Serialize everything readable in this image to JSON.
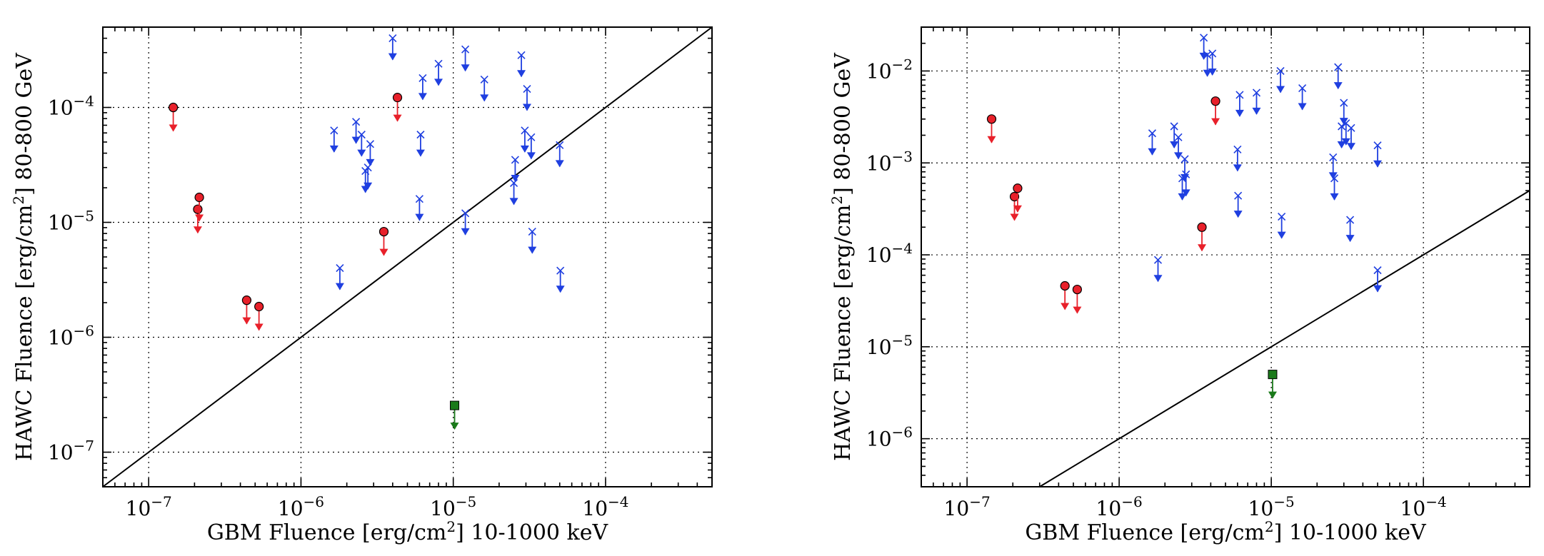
{
  "colors": {
    "grb_red": "#e8202a",
    "grb_blue": "#1f3fe0",
    "grb_green": "#1a7a1a",
    "line": "#000000"
  },
  "chart_data": [
    {
      "type": "scatter",
      "title": "",
      "xlabel": "GBM Fluence [erg/cm²] 10-1000 keV",
      "ylabel": "HAWC Fluence [erg/cm²] 80-800 GeV",
      "xscale": "log",
      "yscale": "log",
      "xlim": [
        5e-08,
        0.0005
      ],
      "ylim": [
        5e-08,
        0.0005
      ],
      "grid": true,
      "x_ticks": [
        {
          "value": 1e-07,
          "label": "10−7"
        },
        {
          "value": 1e-06,
          "label": "10−6"
        },
        {
          "value": 1e-05,
          "label": "10−5"
        },
        {
          "value": 0.0001,
          "label": "10−4"
        }
      ],
      "y_ticks": [
        {
          "value": 1e-07,
          "label": "10−7"
        },
        {
          "value": 1e-06,
          "label": "10−6"
        },
        {
          "value": 1e-05,
          "label": "10−5"
        },
        {
          "value": 0.0001,
          "label": "10−4"
        }
      ],
      "reference_line": {
        "label": "equal fluence",
        "points": [
          [
            5e-08,
            5e-08
          ],
          [
            0.0005,
            0.0005
          ]
        ]
      },
      "series": [
        {
          "name": "upper limits (red)",
          "color_key": "grb_red",
          "marker": "circle",
          "points": [
            [
              1.45e-07,
              0.0001
            ],
            [
              2.1e-07,
              1.3e-05
            ],
            [
              2.15e-07,
              1.65e-05
            ],
            [
              4.4e-07,
              2.1e-06
            ],
            [
              5.3e-07,
              1.85e-06
            ],
            [
              3.5e-06,
              8.3e-06
            ],
            [
              4.3e-06,
              0.000122
            ]
          ]
        },
        {
          "name": "upper limits (blue)",
          "color_key": "grb_blue",
          "marker": "x",
          "points": [
            [
              1.65e-06,
              6.3e-05
            ],
            [
              1.8e-06,
              4e-06
            ],
            [
              2.3e-06,
              7.5e-05
            ],
            [
              2.5e-06,
              5.8e-05
            ],
            [
              2.65e-06,
              2.8e-05
            ],
            [
              2.75e-06,
              3e-05
            ],
            [
              2.85e-06,
              4.8e-05
            ],
            [
              4e-06,
              0.0004
            ],
            [
              6e-06,
              1.6e-05
            ],
            [
              6.1e-06,
              5.8e-05
            ],
            [
              6.3e-06,
              0.00018
            ],
            [
              8e-06,
              0.00024
            ],
            [
              1.2e-05,
              0.00032
            ],
            [
              1.2e-05,
              1.2e-05
            ],
            [
              1.6e-05,
              0.000175
            ],
            [
              2.5e-05,
              2.2e-05
            ],
            [
              2.55e-05,
              3.5e-05
            ],
            [
              2.8e-05,
              0.000285
            ],
            [
              2.95e-05,
              6.3e-05
            ],
            [
              3.05e-05,
              0.000145
            ],
            [
              3.25e-05,
              5.5e-05
            ],
            [
              3.3e-05,
              8.3e-06
            ],
            [
              5e-05,
              4.7e-05
            ],
            [
              5.05e-05,
              3.8e-06
            ]
          ]
        },
        {
          "name": "upper limit (green)",
          "color_key": "grb_green",
          "marker": "square",
          "points": [
            [
              1.02e-05,
              2.55e-07
            ]
          ]
        }
      ]
    },
    {
      "type": "scatter",
      "title": "",
      "xlabel": "GBM Fluence [erg/cm²] 10-1000 keV",
      "ylabel": "HAWC Fluence [erg/cm²] 80-800 GeV",
      "xscale": "log",
      "yscale": "log",
      "xlim": [
        5e-08,
        0.0005
      ],
      "ylim": [
        3e-07,
        0.03
      ],
      "grid": true,
      "x_ticks": [
        {
          "value": 1e-07,
          "label": "10−7"
        },
        {
          "value": 1e-06,
          "label": "10−6"
        },
        {
          "value": 1e-05,
          "label": "10−5"
        },
        {
          "value": 0.0001,
          "label": "10−4"
        }
      ],
      "y_ticks": [
        {
          "value": 1e-06,
          "label": "10−6"
        },
        {
          "value": 1e-05,
          "label": "10−5"
        },
        {
          "value": 0.0001,
          "label": "10−4"
        },
        {
          "value": 0.001,
          "label": "10−3"
        },
        {
          "value": 0.01,
          "label": "10−2"
        }
      ],
      "reference_line": {
        "label": "equal fluence",
        "points": [
          [
            3e-07,
            3e-07
          ],
          [
            0.0005,
            0.0005
          ]
        ]
      },
      "series": [
        {
          "name": "upper limits (red)",
          "color_key": "grb_red",
          "marker": "circle",
          "points": [
            [
              1.45e-07,
              0.003
            ],
            [
              2.05e-07,
              0.00043
            ],
            [
              2.15e-07,
              0.00053
            ],
            [
              4.4e-07,
              4.6e-05
            ],
            [
              5.3e-07,
              4.2e-05
            ],
            [
              3.5e-06,
              0.0002
            ],
            [
              4.3e-06,
              0.0047
            ]
          ]
        },
        {
          "name": "upper limits (blue)",
          "color_key": "grb_blue",
          "marker": "x",
          "points": [
            [
              1.65e-06,
              0.0021
            ],
            [
              1.8e-06,
              8.8e-05
            ],
            [
              2.3e-06,
              0.0025
            ],
            [
              2.45e-06,
              0.0019
            ],
            [
              2.6e-06,
              0.00068
            ],
            [
              2.7e-06,
              0.0011
            ],
            [
              2.75e-06,
              0.00075
            ],
            [
              3.6e-06,
              0.023
            ],
            [
              3.8e-06,
              0.015
            ],
            [
              4.1e-06,
              0.0155
            ],
            [
              6e-06,
              0.0014
            ],
            [
              6.05e-06,
              0.00044
            ],
            [
              6.2e-06,
              0.0055
            ],
            [
              8e-06,
              0.0058
            ],
            [
              1.15e-05,
              0.01
            ],
            [
              1.17e-05,
              0.00026
            ],
            [
              1.6e-05,
              0.0065
            ],
            [
              2.55e-05,
              0.00115
            ],
            [
              2.6e-05,
              0.00068
            ],
            [
              2.75e-05,
              0.011
            ],
            [
              2.9e-05,
              0.0025
            ],
            [
              3e-05,
              0.0045
            ],
            [
              3.1e-05,
              0.0027
            ],
            [
              3.3e-05,
              0.00024
            ],
            [
              3.35e-05,
              0.0024
            ],
            [
              5e-05,
              0.00155
            ],
            [
              5e-05,
              6.8e-05
            ]
          ]
        },
        {
          "name": "upper limit (green)",
          "color_key": "grb_green",
          "marker": "square",
          "points": [
            [
              1.02e-05,
              5e-06
            ]
          ]
        }
      ]
    }
  ]
}
